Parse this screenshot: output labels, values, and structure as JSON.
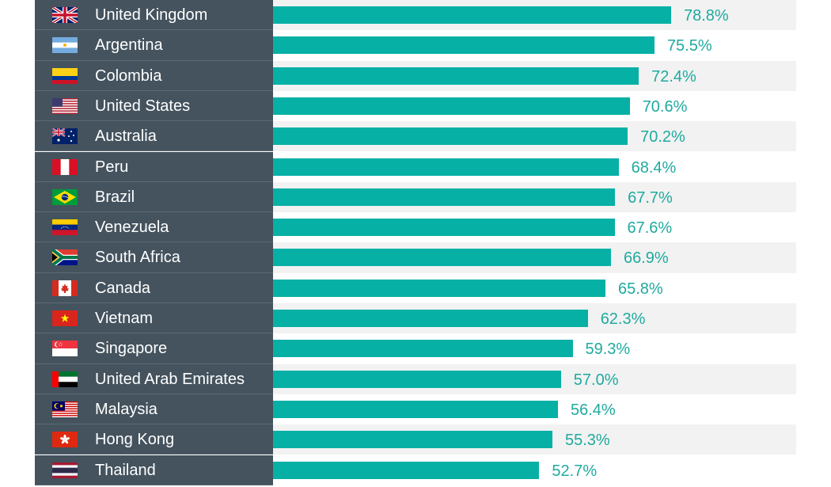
{
  "chart_data": {
    "type": "bar",
    "orientation": "horizontal",
    "categories": [
      "United Kingdom",
      "Argentina",
      "Colombia",
      "United States",
      "Australia",
      "Peru",
      "Brazil",
      "Venezuela",
      "South Africa",
      "Canada",
      "Vietnam",
      "Singapore",
      "United Arab Emirates",
      "Malaysia",
      "Hong Kong",
      "Thailand"
    ],
    "values": [
      78.8,
      75.5,
      72.4,
      70.6,
      70.2,
      68.4,
      67.7,
      67.6,
      66.9,
      65.8,
      62.3,
      59.3,
      57.0,
      56.4,
      55.3,
      52.7
    ],
    "value_labels": [
      "78.8%",
      "75.5%",
      "72.4%",
      "70.6%",
      "70.2%",
      "68.4%",
      "67.7%",
      "67.6%",
      "66.9%",
      "65.8%",
      "62.3%",
      "59.3%",
      "57.0%",
      "56.4%",
      "55.3%",
      "52.7%"
    ],
    "unit": "%",
    "xlim": [
      0,
      100
    ],
    "flags": [
      "flag-uk-icon",
      "flag-argentina-icon",
      "flag-colombia-icon",
      "flag-usa-icon",
      "flag-australia-icon",
      "flag-peru-icon",
      "flag-brazil-icon",
      "flag-venezuela-icon",
      "flag-south-africa-icon",
      "flag-canada-icon",
      "flag-vietnam-icon",
      "flag-singapore-icon",
      "flag-uae-icon",
      "flag-malaysia-icon",
      "flag-hong-kong-icon",
      "flag-thailand-icon"
    ],
    "colors": {
      "bar": "#07b0a5",
      "value_text": "#1faa9f",
      "label_panel": "#44535e",
      "band_odd": "#f2f2f2",
      "band_even": "#ffffff"
    }
  }
}
